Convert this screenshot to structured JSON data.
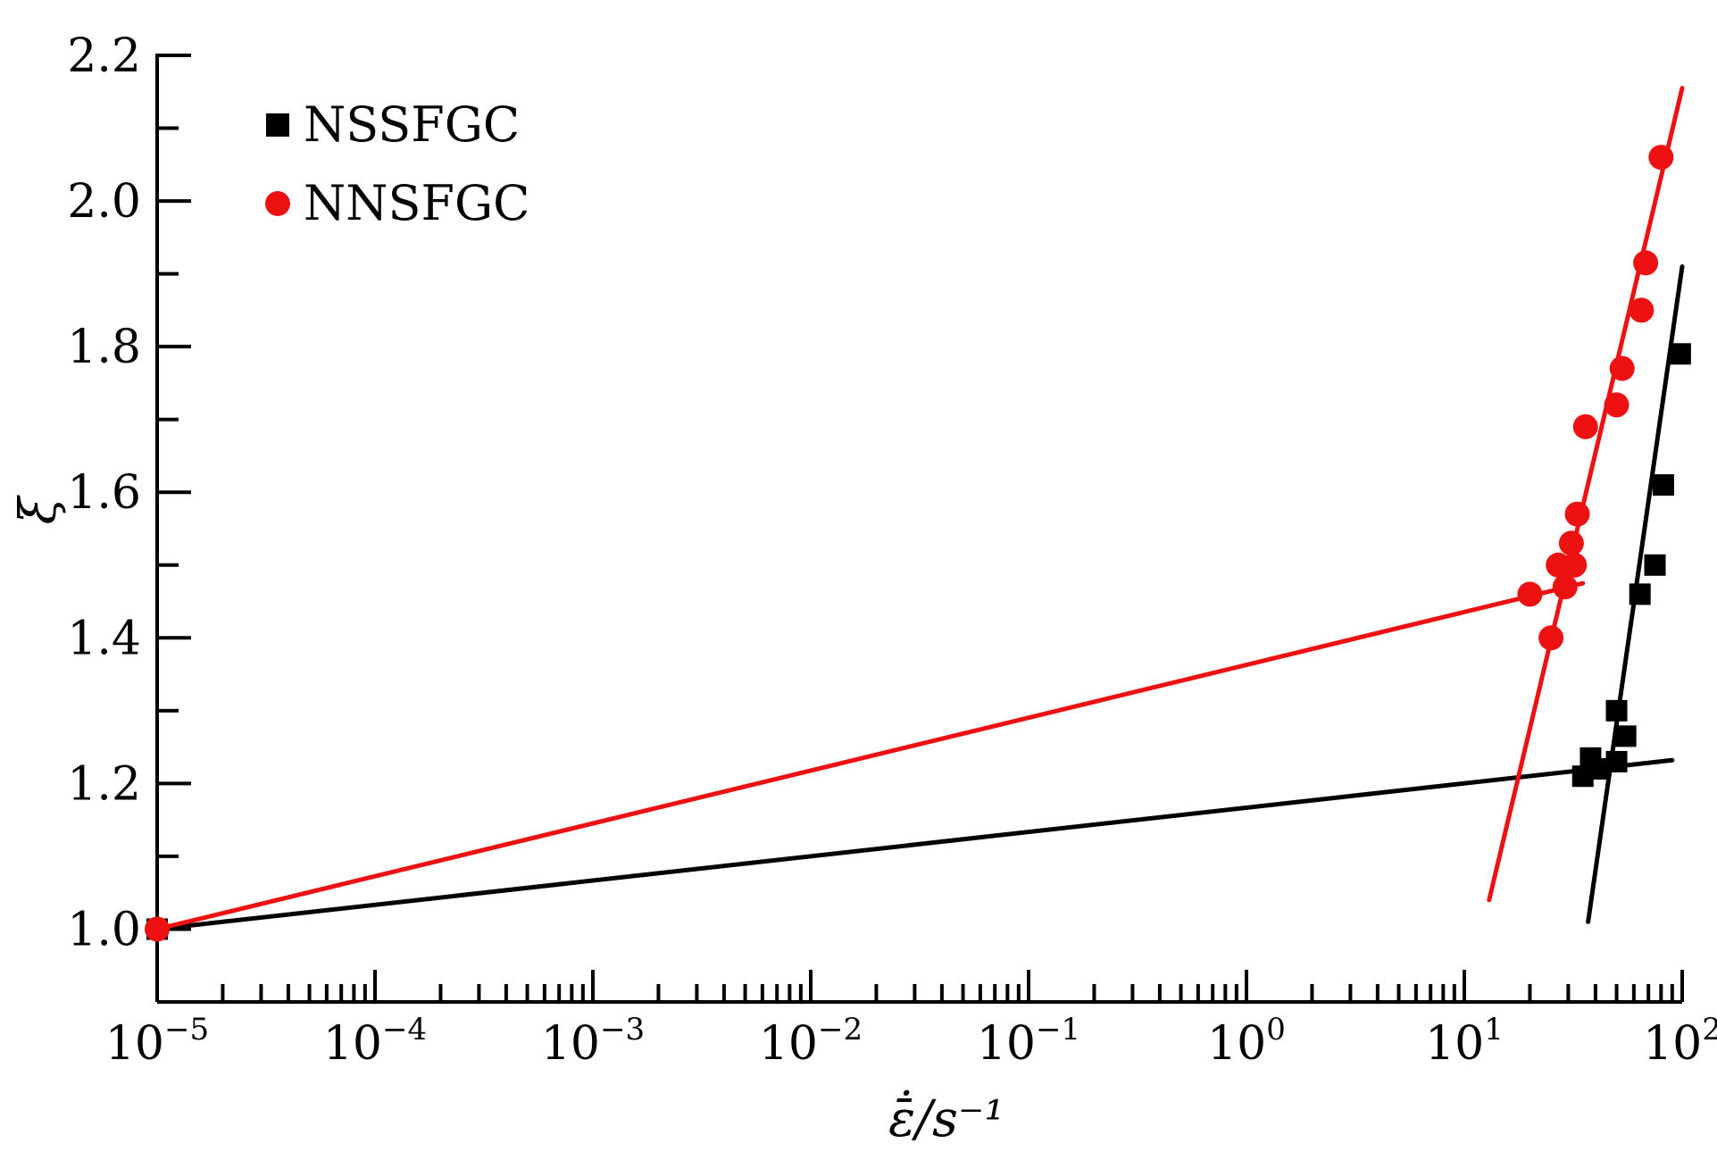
{
  "chart_data": {
    "type": "scatter",
    "title": "",
    "xlabel": "ε̄̇/s⁻¹",
    "ylabel": "ξ",
    "x_scale": "log",
    "xlim": [
      1e-05,
      100
    ],
    "ylim": [
      0.9,
      2.2
    ],
    "grid": false,
    "legend_position": "top-left",
    "x_ticks": [
      {
        "value": 1e-05,
        "base": "10",
        "exp": "−5"
      },
      {
        "value": 0.0001,
        "base": "10",
        "exp": "−4"
      },
      {
        "value": 0.001,
        "base": "10",
        "exp": "−3"
      },
      {
        "value": 0.01,
        "base": "10",
        "exp": "−2"
      },
      {
        "value": 0.1,
        "base": "10",
        "exp": "−1"
      },
      {
        "value": 1,
        "base": "10",
        "exp": "0"
      },
      {
        "value": 10,
        "base": "10",
        "exp": "1"
      },
      {
        "value": 100,
        "base": "10",
        "exp": "2"
      }
    ],
    "y_ticks": [
      "1.0",
      "1.2",
      "1.4",
      "1.6",
      "1.8",
      "2.0",
      "2.2"
    ],
    "series": [
      {
        "name": "NSSFGC",
        "color": "#000000",
        "marker": "square",
        "points": [
          {
            "x": 1e-05,
            "y": 1.0
          },
          {
            "x": 35,
            "y": 1.21
          },
          {
            "x": 38,
            "y": 1.235
          },
          {
            "x": 42,
            "y": 1.22
          },
          {
            "x": 50,
            "y": 1.3
          },
          {
            "x": 50,
            "y": 1.23
          },
          {
            "x": 55,
            "y": 1.265
          },
          {
            "x": 64,
            "y": 1.46
          },
          {
            "x": 75,
            "y": 1.5
          },
          {
            "x": 82,
            "y": 1.61
          },
          {
            "x": 98,
            "y": 1.79
          }
        ],
        "fit_lines": [
          {
            "x": [
              1e-05,
              90
            ],
            "y": [
              1.0,
              1.232
            ]
          },
          {
            "x": [
              37,
              100
            ],
            "y": [
              1.01,
              1.91
            ]
          }
        ]
      },
      {
        "name": "NNSFGC",
        "color": "#ee1111",
        "marker": "circle",
        "points": [
          {
            "x": 1e-05,
            "y": 1.0
          },
          {
            "x": 20,
            "y": 1.46
          },
          {
            "x": 25,
            "y": 1.4
          },
          {
            "x": 27,
            "y": 1.5
          },
          {
            "x": 29,
            "y": 1.47
          },
          {
            "x": 31,
            "y": 1.53
          },
          {
            "x": 32,
            "y": 1.5
          },
          {
            "x": 33,
            "y": 1.57
          },
          {
            "x": 36,
            "y": 1.69
          },
          {
            "x": 50,
            "y": 1.72
          },
          {
            "x": 53,
            "y": 1.77
          },
          {
            "x": 65,
            "y": 1.85
          },
          {
            "x": 68,
            "y": 1.915
          },
          {
            "x": 80,
            "y": 2.06
          }
        ],
        "fit_lines": [
          {
            "x": [
              1e-05,
              35
            ],
            "y": [
              1.0,
              1.475
            ]
          },
          {
            "x": [
              13,
              100
            ],
            "y": [
              1.04,
              2.155
            ]
          }
        ]
      }
    ]
  }
}
